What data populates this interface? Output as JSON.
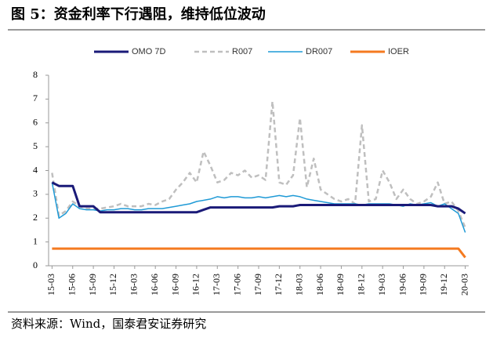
{
  "chart_data": {
    "type": "line",
    "title": "图 5：资金利率下行遇阻，维持低位波动",
    "source": "资料来源：Wind，国泰君安证券研究",
    "legend": "top",
    "categories": [
      "15-03",
      null,
      null,
      "15-06",
      null,
      null,
      "15-09",
      null,
      null,
      "15-12",
      null,
      null,
      "16-03",
      null,
      null,
      "16-06",
      null,
      null,
      "16-09",
      null,
      null,
      "16-12",
      null,
      null,
      "17-03",
      null,
      null,
      "17-06",
      null,
      null,
      "17-09",
      null,
      null,
      "17-12",
      null,
      null,
      "18-03",
      null,
      null,
      "18-06",
      null,
      null,
      "18-09",
      null,
      null,
      "18-12",
      null,
      null,
      "19-03",
      null,
      null,
      "19-06",
      null,
      null,
      "19-09",
      null,
      null,
      "19-12",
      null,
      null,
      "20-03"
    ],
    "ylim": [
      0,
      8
    ],
    "yticks": [
      0,
      1,
      2,
      3,
      4,
      5,
      6,
      7,
      8
    ],
    "series": [
      {
        "name": "OMO 7D",
        "color": "#1a1a78",
        "values": [
          3.5,
          3.35,
          3.35,
          3.35,
          2.5,
          2.5,
          2.5,
          2.25,
          2.25,
          2.25,
          2.25,
          2.25,
          2.25,
          2.25,
          2.25,
          2.25,
          2.25,
          2.25,
          2.25,
          2.25,
          2.25,
          2.25,
          2.35,
          2.45,
          2.45,
          2.45,
          2.45,
          2.45,
          2.45,
          2.45,
          2.45,
          2.45,
          2.45,
          2.5,
          2.5,
          2.5,
          2.55,
          2.55,
          2.55,
          2.55,
          2.55,
          2.55,
          2.55,
          2.55,
          2.55,
          2.55,
          2.55,
          2.55,
          2.55,
          2.55,
          2.55,
          2.55,
          2.55,
          2.55,
          2.55,
          2.55,
          2.5,
          2.5,
          2.5,
          2.4,
          2.2
        ]
      },
      {
        "name": "R007",
        "color": "#bfbfbf",
        "values": [
          3.9,
          2.1,
          2.3,
          2.7,
          2.5,
          2.4,
          2.4,
          2.4,
          2.45,
          2.5,
          2.6,
          2.5,
          2.5,
          2.5,
          2.6,
          2.55,
          2.7,
          2.8,
          3.2,
          3.5,
          3.9,
          3.5,
          4.8,
          4.2,
          3.5,
          3.6,
          3.9,
          3.8,
          4.0,
          3.7,
          3.8,
          3.6,
          6.9,
          3.5,
          3.4,
          3.8,
          6.2,
          3.3,
          4.5,
          3.2,
          3.0,
          2.8,
          2.7,
          2.8,
          2.6,
          5.9,
          2.7,
          2.8,
          4.0,
          3.5,
          2.8,
          3.2,
          2.8,
          2.6,
          2.7,
          2.9,
          3.5,
          2.6,
          2.7,
          2.3,
          1.6
        ]
      },
      {
        "name": "DR007",
        "color": "#1f9ad6",
        "values": [
          3.5,
          2.0,
          2.2,
          2.6,
          2.4,
          2.35,
          2.35,
          2.3,
          2.35,
          2.35,
          2.4,
          2.4,
          2.35,
          2.35,
          2.4,
          2.4,
          2.4,
          2.45,
          2.5,
          2.55,
          2.6,
          2.7,
          2.75,
          2.8,
          2.9,
          2.85,
          2.9,
          2.9,
          2.85,
          2.85,
          2.9,
          2.85,
          2.9,
          2.95,
          2.9,
          2.95,
          2.9,
          2.8,
          2.75,
          2.7,
          2.65,
          2.6,
          2.6,
          2.6,
          2.6,
          2.55,
          2.6,
          2.6,
          2.6,
          2.6,
          2.55,
          2.5,
          2.6,
          2.55,
          2.6,
          2.65,
          2.5,
          2.6,
          2.4,
          2.2,
          1.4
        ]
      },
      {
        "name": "IOER",
        "color": "#f47a20",
        "values": [
          0.72,
          0.72,
          0.72,
          0.72,
          0.72,
          0.72,
          0.72,
          0.72,
          0.72,
          0.72,
          0.72,
          0.72,
          0.72,
          0.72,
          0.72,
          0.72,
          0.72,
          0.72,
          0.72,
          0.72,
          0.72,
          0.72,
          0.72,
          0.72,
          0.72,
          0.72,
          0.72,
          0.72,
          0.72,
          0.72,
          0.72,
          0.72,
          0.72,
          0.72,
          0.72,
          0.72,
          0.72,
          0.72,
          0.72,
          0.72,
          0.72,
          0.72,
          0.72,
          0.72,
          0.72,
          0.72,
          0.72,
          0.72,
          0.72,
          0.72,
          0.72,
          0.72,
          0.72,
          0.72,
          0.72,
          0.72,
          0.72,
          0.72,
          0.72,
          0.72,
          0.35
        ]
      }
    ]
  }
}
